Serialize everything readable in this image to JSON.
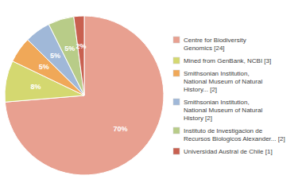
{
  "chart_data": {
    "type": "pie",
    "categories": [
      "Centre for Biodiversity\nGenomics [24]",
      "Mined from GenBank, NCBI [3]",
      "Smithsonian Institution,\nNational Museum of Natural\nHistory... [2]",
      "Smithsonian Institution,\nNational Museum of Natural\nHistory [2]",
      "Instituto de Investigacion de\nRecursos Biologicos Alexander... [2]",
      "Universidad Austral de Chile [1]"
    ],
    "values": [
      70,
      8,
      5,
      5,
      5,
      2
    ],
    "value_labels": [
      "70%",
      "8%",
      "5%",
      "5%",
      "5%",
      "2%"
    ],
    "colors": [
      "#e8a090",
      "#d4d870",
      "#f0a858",
      "#a0b8d8",
      "#b8cc88",
      "#c86050"
    ],
    "data_labels": true,
    "legend": "right"
  }
}
